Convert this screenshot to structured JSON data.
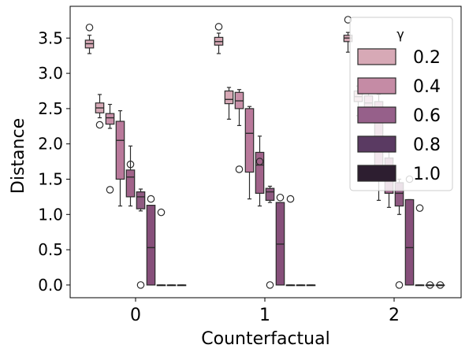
{
  "chart_data": {
    "type": "box",
    "title": "",
    "xlabel": "Counterfactual",
    "ylabel": "Distance",
    "categories": [
      "0",
      "1",
      "2"
    ],
    "ylim": [
      -0.18,
      3.95
    ],
    "yticks": [
      0.0,
      0.5,
      1.0,
      1.5,
      2.0,
      2.5,
      3.0,
      3.5
    ],
    "ytick_labels": [
      "0.0",
      "0.5",
      "1.0",
      "1.5",
      "2.0",
      "2.5",
      "3.0",
      "3.5"
    ],
    "grid": false,
    "legend": {
      "title": "γ",
      "placement": "top-right",
      "labels": [
        "0.2",
        "0.4",
        "0.6",
        "0.8",
        "1.0"
      ]
    },
    "series": [
      {
        "name": "0.2",
        "color": "#d7a9b6",
        "boxes": [
          {
            "min": 3.28,
            "q1": 3.36,
            "median": 3.42,
            "q3": 3.47,
            "max": 3.54,
            "outliers": [
              3.65
            ]
          },
          {
            "min": 3.28,
            "q1": 3.4,
            "median": 3.45,
            "q3": 3.51,
            "max": 3.57,
            "outliers": [
              3.66
            ]
          },
          {
            "min": 3.3,
            "q1": 3.45,
            "median": 3.5,
            "q3": 3.54,
            "max": 3.58,
            "outliers": [
              3.76
            ]
          }
        ]
      },
      {
        "name": "0.2",
        "color": "#d7a9b6",
        "boxes": [
          {
            "min": 2.37,
            "q1": 2.44,
            "median": 2.51,
            "q3": 2.58,
            "max": 2.7,
            "outliers": [
              2.27
            ]
          },
          {
            "min": 2.35,
            "q1": 2.57,
            "median": 2.63,
            "q3": 2.75,
            "max": 2.8,
            "outliers": []
          },
          {
            "min": 2.4,
            "q1": 2.6,
            "median": 2.67,
            "q3": 2.75,
            "max": 2.82,
            "outliers": []
          }
        ]
      },
      {
        "name": "0.4",
        "color": "#c990a9",
        "boxes": [
          {
            "min": 2.22,
            "q1": 2.28,
            "median": 2.37,
            "q3": 2.43,
            "max": 2.56,
            "outliers": [
              1.35
            ]
          },
          {
            "min": 2.26,
            "q1": 2.5,
            "median": 2.61,
            "q3": 2.73,
            "max": 2.77,
            "outliers": [
              1.64
            ]
          },
          {
            "min": 2.3,
            "q1": 2.5,
            "median": 2.58,
            "q3": 2.68,
            "max": 2.75,
            "outliers": []
          }
        ]
      },
      {
        "name": "0.4",
        "color": "#b9799b",
        "boxes": [
          {
            "min": 1.12,
            "q1": 1.5,
            "median": 2.05,
            "q3": 2.32,
            "max": 2.47,
            "outliers": []
          },
          {
            "min": 1.22,
            "q1": 1.6,
            "median": 2.15,
            "q3": 2.5,
            "max": 2.53,
            "outliers": []
          },
          {
            "min": 1.2,
            "q1": 1.6,
            "median": 2.0,
            "q3": 2.6,
            "max": 2.7,
            "outliers": []
          }
        ]
      },
      {
        "name": "0.6",
        "color": "#a1638a",
        "boxes": [
          {
            "min": 1.12,
            "q1": 1.25,
            "median": 1.53,
            "q3": 1.63,
            "max": 1.97,
            "outliers": [
              1.71
            ]
          },
          {
            "min": 1.12,
            "q1": 1.3,
            "median": 1.7,
            "q3": 1.88,
            "max": 2.11,
            "outliers": [
              1.75
            ]
          },
          {
            "min": 1.1,
            "q1": 1.3,
            "median": 1.55,
            "q3": 1.8,
            "max": 2.0,
            "outliers": [
              1.52,
              2.35
            ]
          }
        ]
      },
      {
        "name": "0.6",
        "color": "#8f5a82",
        "boxes": [
          {
            "min": 1.05,
            "q1": 1.08,
            "median": 1.25,
            "q3": 1.32,
            "max": 1.36,
            "outliers": [
              0.0
            ]
          },
          {
            "min": 1.17,
            "q1": 1.2,
            "median": 1.32,
            "q3": 1.37,
            "max": 1.4,
            "outliers": [
              0.0
            ]
          },
          {
            "min": 1.0,
            "q1": 1.12,
            "median": 1.3,
            "q3": 1.45,
            "max": 1.5,
            "outliers": [
              0.0
            ]
          }
        ]
      },
      {
        "name": "0.8",
        "color": "#864f7a",
        "boxes": [
          {
            "min": 0.0,
            "q1": 0.0,
            "median": 0.53,
            "q3": 1.13,
            "max": 1.13,
            "outliers": [
              1.22
            ]
          },
          {
            "min": 0.0,
            "q1": 0.0,
            "median": 0.58,
            "q3": 1.17,
            "max": 1.17,
            "outliers": [
              1.24
            ]
          },
          {
            "min": 0.0,
            "q1": 0.0,
            "median": 0.53,
            "q3": 1.21,
            "max": 1.21,
            "outliers": [
              1.5
            ]
          }
        ]
      },
      {
        "name": "0.8",
        "color": "#5a3560",
        "boxes": [
          {
            "min": 0.0,
            "q1": 0.0,
            "median": 0.0,
            "q3": 0.0,
            "max": 0.0,
            "outliers": [
              1.03
            ]
          },
          {
            "min": 0.0,
            "q1": 0.0,
            "median": 0.0,
            "q3": 0.0,
            "max": 0.0,
            "outliers": [
              1.22
            ]
          },
          {
            "min": 0.0,
            "q1": 0.0,
            "median": 0.0,
            "q3": 0.0,
            "max": 0.0,
            "outliers": [
              1.09
            ]
          }
        ]
      },
      {
        "name": "1.0",
        "color": "#412845",
        "boxes": [
          {
            "min": 0.0,
            "q1": 0.0,
            "median": 0.0,
            "q3": 0.0,
            "max": 0.0,
            "outliers": []
          },
          {
            "min": 0.0,
            "q1": 0.0,
            "median": 0.0,
            "q3": 0.0,
            "max": 0.0,
            "outliers": []
          },
          {
            "min": 0.0,
            "q1": 0.0,
            "median": 0.0,
            "q3": 0.0,
            "max": 0.0,
            "outliers": [
              0.0
            ]
          }
        ]
      },
      {
        "name": "1.0",
        "color": "#2d1e2f",
        "boxes": [
          {
            "min": 0.0,
            "q1": 0.0,
            "median": 0.0,
            "q3": 0.0,
            "max": 0.0,
            "outliers": []
          },
          {
            "min": 0.0,
            "q1": 0.0,
            "median": 0.0,
            "q3": 0.0,
            "max": 0.0,
            "outliers": []
          },
          {
            "min": 0.0,
            "q1": 0.0,
            "median": 0.0,
            "q3": 0.0,
            "max": 0.0,
            "outliers": [
              0.0
            ]
          }
        ]
      }
    ],
    "legend_colors": [
      "#d7a9b6",
      "#c58ba5",
      "#96608a",
      "#5a3a62",
      "#2d1e30"
    ]
  }
}
